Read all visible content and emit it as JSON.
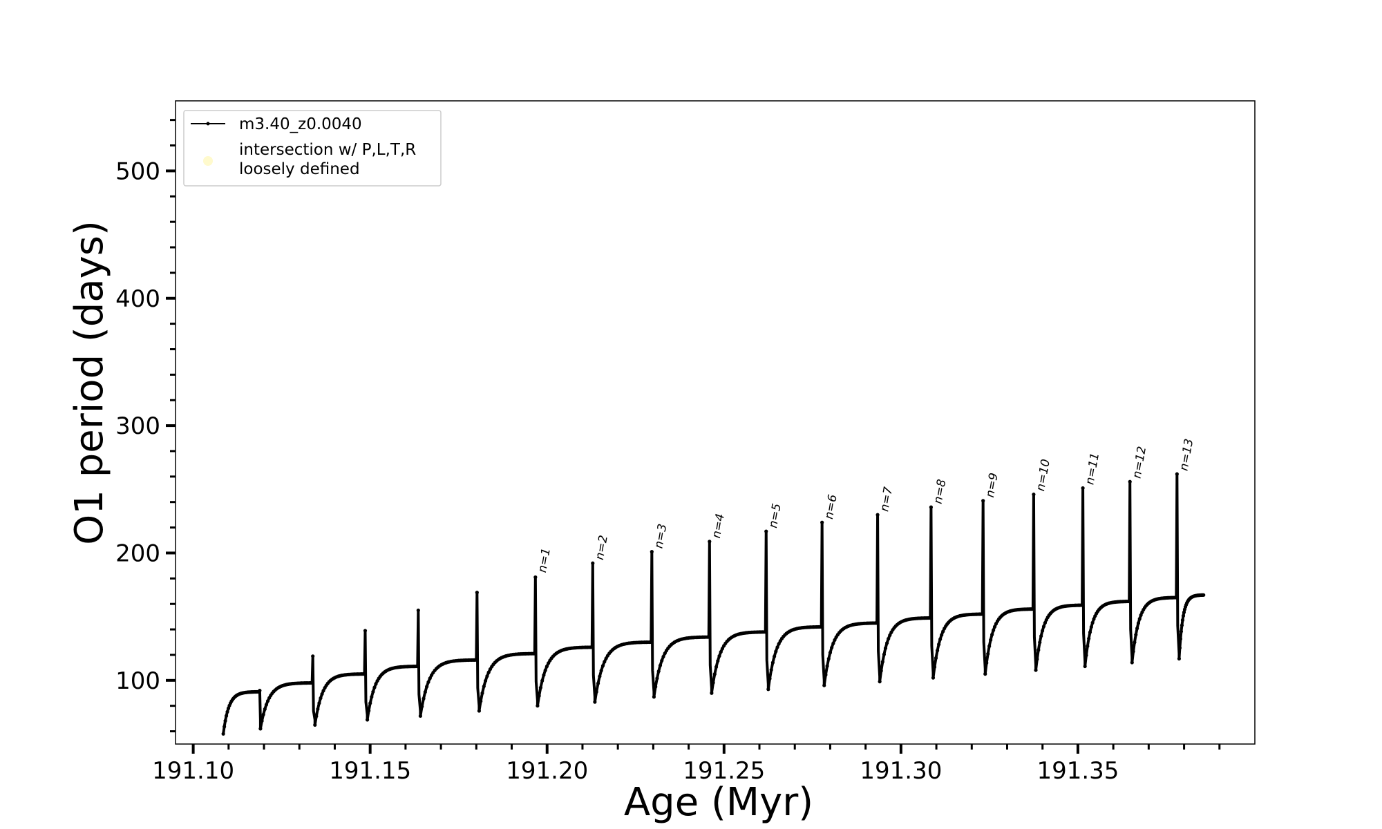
{
  "chart_data": {
    "type": "line",
    "xlabel": "Age (Myr)",
    "ylabel": "O1 period (days)",
    "xlim": [
      191.095,
      191.4
    ],
    "ylim": [
      50,
      555
    ],
    "xticks": [
      191.1,
      191.15,
      191.2,
      191.25,
      191.3,
      191.35
    ],
    "xtick_labels": [
      "191.10",
      "191.15",
      "191.20",
      "191.25",
      "191.30",
      "191.35"
    ],
    "yticks": [
      100,
      200,
      300,
      400,
      500
    ],
    "ytick_labels": [
      "100",
      "200",
      "300",
      "400",
      "500"
    ],
    "grid": false,
    "legend_position": "upper-left",
    "series": [
      {
        "name": "m3.40_z0.0040",
        "color": "#000000",
        "cycles": [
          {
            "start": 191.1085,
            "end": 191.1186,
            "min": 58,
            "max": 91,
            "spike": 68
          },
          {
            "start": 191.119,
            "end": 191.1336,
            "min": 62,
            "max": 98,
            "spike": 92
          },
          {
            "start": 191.1344,
            "end": 191.1484,
            "min": 65,
            "max": 105,
            "spike": 119
          },
          {
            "start": 191.1492,
            "end": 191.1634,
            "min": 69,
            "max": 111,
            "spike": 139
          },
          {
            "start": 191.1642,
            "end": 191.18,
            "min": 72,
            "max": 116,
            "spike": 155
          },
          {
            "start": 191.1808,
            "end": 191.1965,
            "min": 76,
            "max": 121,
            "spike": 169
          },
          {
            "start": 191.1973,
            "end": 191.2127,
            "min": 80,
            "max": 126,
            "spike": 181
          },
          {
            "start": 191.2135,
            "end": 191.2294,
            "min": 83,
            "max": 130,
            "spike": 192
          },
          {
            "start": 191.2302,
            "end": 191.2457,
            "min": 87,
            "max": 134,
            "spike": 201
          },
          {
            "start": 191.2465,
            "end": 191.2617,
            "min": 90,
            "max": 138,
            "spike": 209
          },
          {
            "start": 191.2625,
            "end": 191.2775,
            "min": 93,
            "max": 142,
            "spike": 217
          },
          {
            "start": 191.2783,
            "end": 191.2932,
            "min": 96,
            "max": 145,
            "spike": 224
          },
          {
            "start": 191.294,
            "end": 191.3083,
            "min": 99,
            "max": 149,
            "spike": 230
          },
          {
            "start": 191.3091,
            "end": 191.323,
            "min": 102,
            "max": 152,
            "spike": 236
          },
          {
            "start": 191.3238,
            "end": 191.3373,
            "min": 105,
            "max": 156,
            "spike": 241
          },
          {
            "start": 191.3381,
            "end": 191.3512,
            "min": 108,
            "max": 159,
            "spike": 246
          },
          {
            "start": 191.352,
            "end": 191.3645,
            "min": 111,
            "max": 162,
            "spike": 251
          },
          {
            "start": 191.3653,
            "end": 191.3778,
            "min": 114,
            "max": 165,
            "spike": 256
          },
          {
            "start": 191.3786,
            "end": 191.3855,
            "min": 117,
            "max": 167,
            "spike": 262
          }
        ]
      },
      {
        "name": "intersection w/ P,L,T,R loosely defined",
        "color": "#fffacd",
        "points": []
      }
    ],
    "annotations": [
      {
        "text": "n=1",
        "x": 191.1965,
        "y": 182
      },
      {
        "text": "n=2",
        "x": 191.2127,
        "y": 192
      },
      {
        "text": "n=3",
        "x": 191.2294,
        "y": 201
      },
      {
        "text": "n=4",
        "x": 191.2457,
        "y": 209
      },
      {
        "text": "n=5",
        "x": 191.2617,
        "y": 217
      },
      {
        "text": "n=6",
        "x": 191.2775,
        "y": 224
      },
      {
        "text": "n=7",
        "x": 191.2932,
        "y": 230
      },
      {
        "text": "n=8",
        "x": 191.3083,
        "y": 236
      },
      {
        "text": "n=9",
        "x": 191.323,
        "y": 241
      },
      {
        "text": "n=10",
        "x": 191.3373,
        "y": 246
      },
      {
        "text": "n=11",
        "x": 191.3512,
        "y": 251
      },
      {
        "text": "n=12",
        "x": 191.3645,
        "y": 256
      },
      {
        "text": "n=13",
        "x": 191.3778,
        "y": 262
      }
    ]
  },
  "legend": {
    "entries": [
      {
        "label": "m3.40_z0.0040"
      },
      {
        "label": "intersection w/ P,L,T,R",
        "label_line2": "loosely defined"
      }
    ]
  }
}
